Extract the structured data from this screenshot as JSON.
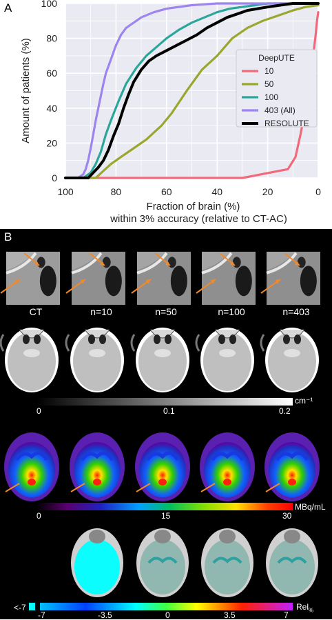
{
  "panel_a": {
    "letter": "A",
    "chart_data": {
      "type": "line",
      "xlabel": "Fraction of brain (%)",
      "xlabel_sub": "within 3% accuracy (relative to CT-AC)",
      "ylabel": "Amount of patients (%)",
      "xlim": [
        100,
        0
      ],
      "ylim": [
        0,
        100
      ],
      "x_reversed": true,
      "x_ticks": [
        100,
        80,
        60,
        40,
        20,
        0
      ],
      "y_ticks": [
        0,
        20,
        40,
        60,
        80,
        100
      ],
      "grid": true,
      "legend_title": "DeepUTE",
      "legend_position": "center-right",
      "series": [
        {
          "name": "10",
          "color": "#f06a7c",
          "x": [
            100,
            30,
            12,
            9,
            7,
            5,
            3,
            2,
            1,
            0.5,
            0
          ],
          "y": [
            0,
            0,
            5,
            12,
            25,
            40,
            55,
            70,
            82,
            90,
            95
          ]
        },
        {
          "name": "50",
          "color": "#9aa62c",
          "x": [
            100,
            88,
            82,
            78,
            74,
            68,
            62,
            58,
            52,
            46,
            40,
            34,
            28,
            22,
            16,
            10,
            5,
            0
          ],
          "y": [
            0,
            0,
            8,
            12,
            16,
            22,
            30,
            37,
            50,
            62,
            70,
            80,
            86,
            90,
            93,
            96,
            98,
            99
          ]
        },
        {
          "name": "100",
          "color": "#2aa69a",
          "x": [
            100,
            93,
            90,
            88,
            86,
            84,
            82,
            79,
            76,
            72,
            68,
            64,
            60,
            55,
            50,
            45,
            40,
            35,
            30,
            25,
            20,
            10,
            0
          ],
          "y": [
            0,
            0,
            3,
            8,
            15,
            25,
            33,
            44,
            54,
            63,
            70,
            75,
            80,
            85,
            89,
            92,
            95,
            97,
            98,
            99,
            100,
            100,
            100
          ]
        },
        {
          "name": "403 (All)",
          "color": "#9e84ef",
          "x": [
            100,
            95,
            93,
            92,
            91,
            90,
            89,
            88,
            87,
            86,
            85,
            84,
            83,
            82,
            81,
            80,
            78,
            76,
            74,
            72,
            70,
            65,
            60,
            50,
            40,
            30,
            20,
            0
          ],
          "y": [
            0,
            0,
            2,
            5,
            10,
            17,
            25,
            33,
            40,
            47,
            54,
            60,
            64,
            68,
            72,
            76,
            82,
            86,
            88,
            90,
            92,
            95,
            97,
            99,
            100,
            100,
            100,
            100
          ]
        },
        {
          "name": "RESOLUTE",
          "color": "#000000",
          "x": [
            100,
            91,
            89,
            87,
            85,
            83,
            81,
            79,
            77,
            75,
            73,
            70,
            67,
            64,
            60,
            56,
            52,
            48,
            44,
            40,
            36,
            32,
            28,
            24,
            20,
            15,
            10,
            5,
            0
          ],
          "y": [
            0,
            0,
            3,
            6,
            10,
            16,
            24,
            31,
            40,
            48,
            55,
            62,
            67,
            70,
            73,
            76,
            79,
            82,
            86,
            89,
            92,
            94,
            96,
            97,
            98,
            99,
            100,
            100,
            100
          ]
        }
      ]
    }
  },
  "panel_b": {
    "letter": "B",
    "column_labels": [
      "CT",
      "n=10",
      "n=50",
      "n=100",
      "n=403"
    ],
    "colorbars": [
      {
        "unit": "cm⁻¹",
        "ticks": [
          "0",
          "0.1",
          "0.2"
        ]
      },
      {
        "unit": "MBq/mL",
        "ticks": [
          "0",
          "15",
          "30"
        ]
      },
      {
        "unit": "Rel",
        "unit_sub": "%",
        "low_label": "<-7",
        "ticks": [
          "-7",
          "-3.5",
          "0",
          "3.5",
          "7"
        ]
      }
    ],
    "colors": {
      "arrow": "#f08a2a",
      "ct_bg": "#bfbfbf",
      "cyan": "#00ffff"
    }
  }
}
